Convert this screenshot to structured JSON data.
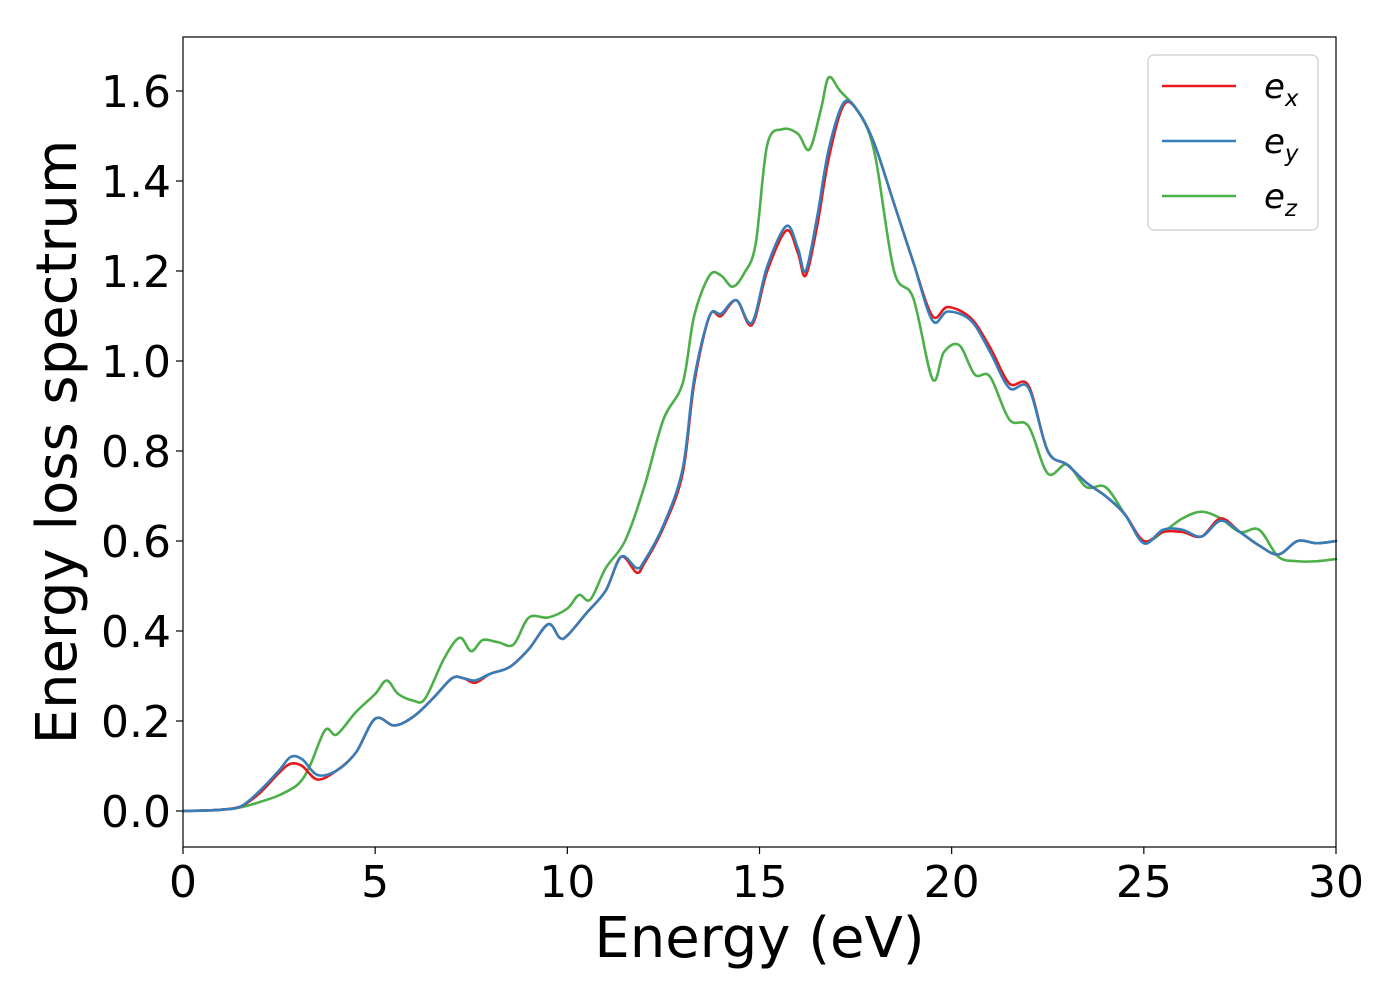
{
  "chart_data": {
    "type": "line",
    "title": "",
    "xlabel": "Energy (eV)",
    "ylabel": "Energy loss spectrum",
    "xlim": [
      0,
      30
    ],
    "ylim": [
      -0.08,
      1.72
    ],
    "xticks": [
      0,
      5,
      10,
      15,
      20,
      25,
      30
    ],
    "yticks": [
      0.0,
      0.2,
      0.4,
      0.6,
      0.8,
      1.0,
      1.2,
      1.4,
      1.6
    ],
    "grid": false,
    "legend_position": "top-right",
    "series": [
      {
        "name": "e",
        "subscript": "x",
        "color": "#e41a1c",
        "points": [
          [
            0,
            0
          ],
          [
            0.5,
            0.001
          ],
          [
            1,
            0.003
          ],
          [
            1.5,
            0.01
          ],
          [
            2,
            0.04
          ],
          [
            2.5,
            0.085
          ],
          [
            2.8,
            0.105
          ],
          [
            3.1,
            0.1
          ],
          [
            3.5,
            0.07
          ],
          [
            4,
            0.09
          ],
          [
            4.5,
            0.13
          ],
          [
            5,
            0.205
          ],
          [
            5.5,
            0.19
          ],
          [
            6,
            0.21
          ],
          [
            6.5,
            0.25
          ],
          [
            7,
            0.295
          ],
          [
            7.3,
            0.295
          ],
          [
            7.6,
            0.285
          ],
          [
            8,
            0.305
          ],
          [
            8.5,
            0.32
          ],
          [
            9,
            0.36
          ],
          [
            9.5,
            0.415
          ],
          [
            9.8,
            0.385
          ],
          [
            10,
            0.39
          ],
          [
            10.5,
            0.44
          ],
          [
            11,
            0.49
          ],
          [
            11.4,
            0.565
          ],
          [
            11.8,
            0.53
          ],
          [
            12,
            0.55
          ],
          [
            12.5,
            0.63
          ],
          [
            13,
            0.75
          ],
          [
            13.3,
            0.95
          ],
          [
            13.7,
            1.1
          ],
          [
            14,
            1.1
          ],
          [
            14.4,
            1.135
          ],
          [
            14.8,
            1.08
          ],
          [
            15.2,
            1.2
          ],
          [
            15.7,
            1.29
          ],
          [
            16,
            1.24
          ],
          [
            16.2,
            1.19
          ],
          [
            16.5,
            1.3
          ],
          [
            16.8,
            1.45
          ],
          [
            17.2,
            1.57
          ],
          [
            17.6,
            1.55
          ],
          [
            18,
            1.48
          ],
          [
            18.5,
            1.35
          ],
          [
            19,
            1.22
          ],
          [
            19.5,
            1.1
          ],
          [
            19.9,
            1.12
          ],
          [
            20.5,
            1.095
          ],
          [
            21,
            1.03
          ],
          [
            21.5,
            0.95
          ],
          [
            22,
            0.945
          ],
          [
            22.5,
            0.8
          ],
          [
            23,
            0.77
          ],
          [
            23.5,
            0.73
          ],
          [
            24,
            0.7
          ],
          [
            24.5,
            0.66
          ],
          [
            25,
            0.6
          ],
          [
            25.5,
            0.62
          ],
          [
            26,
            0.62
          ],
          [
            26.5,
            0.61
          ],
          [
            27,
            0.65
          ],
          [
            27.5,
            0.62
          ],
          [
            28,
            0.59
          ],
          [
            28.5,
            0.57
          ],
          [
            29,
            0.6
          ],
          [
            29.5,
            0.595
          ],
          [
            30,
            0.6
          ]
        ]
      },
      {
        "name": "e",
        "subscript": "y",
        "color": "#377eb8",
        "points": [
          [
            0,
            0
          ],
          [
            0.5,
            0.001
          ],
          [
            1,
            0.003
          ],
          [
            1.5,
            0.01
          ],
          [
            2,
            0.045
          ],
          [
            2.5,
            0.09
          ],
          [
            2.8,
            0.12
          ],
          [
            3.1,
            0.115
          ],
          [
            3.5,
            0.08
          ],
          [
            4,
            0.09
          ],
          [
            4.5,
            0.13
          ],
          [
            5,
            0.205
          ],
          [
            5.5,
            0.19
          ],
          [
            6,
            0.21
          ],
          [
            6.5,
            0.25
          ],
          [
            7,
            0.295
          ],
          [
            7.3,
            0.295
          ],
          [
            7.6,
            0.29
          ],
          [
            8,
            0.305
          ],
          [
            8.5,
            0.32
          ],
          [
            9,
            0.36
          ],
          [
            9.5,
            0.415
          ],
          [
            9.8,
            0.385
          ],
          [
            10,
            0.39
          ],
          [
            10.5,
            0.44
          ],
          [
            11,
            0.49
          ],
          [
            11.4,
            0.565
          ],
          [
            11.8,
            0.54
          ],
          [
            12,
            0.555
          ],
          [
            12.5,
            0.635
          ],
          [
            13,
            0.76
          ],
          [
            13.3,
            0.96
          ],
          [
            13.7,
            1.1
          ],
          [
            14,
            1.105
          ],
          [
            14.4,
            1.135
          ],
          [
            14.8,
            1.085
          ],
          [
            15.2,
            1.21
          ],
          [
            15.7,
            1.3
          ],
          [
            16,
            1.25
          ],
          [
            16.2,
            1.2
          ],
          [
            16.5,
            1.32
          ],
          [
            16.8,
            1.47
          ],
          [
            17.2,
            1.575
          ],
          [
            17.6,
            1.55
          ],
          [
            18,
            1.48
          ],
          [
            18.5,
            1.35
          ],
          [
            19,
            1.22
          ],
          [
            19.5,
            1.09
          ],
          [
            19.9,
            1.11
          ],
          [
            20.5,
            1.09
          ],
          [
            21,
            1.02
          ],
          [
            21.5,
            0.94
          ],
          [
            22,
            0.94
          ],
          [
            22.5,
            0.8
          ],
          [
            23,
            0.77
          ],
          [
            23.5,
            0.73
          ],
          [
            24,
            0.7
          ],
          [
            24.5,
            0.66
          ],
          [
            25,
            0.595
          ],
          [
            25.5,
            0.625
          ],
          [
            26,
            0.625
          ],
          [
            26.5,
            0.61
          ],
          [
            27,
            0.645
          ],
          [
            27.5,
            0.62
          ],
          [
            28,
            0.59
          ],
          [
            28.5,
            0.57
          ],
          [
            29,
            0.6
          ],
          [
            29.5,
            0.595
          ],
          [
            30,
            0.6
          ]
        ]
      },
      {
        "name": "e",
        "subscript": "z",
        "color": "#4daf4a",
        "points": [
          [
            0,
            0
          ],
          [
            0.5,
            0.001
          ],
          [
            1,
            0.003
          ],
          [
            1.5,
            0.008
          ],
          [
            2,
            0.02
          ],
          [
            2.5,
            0.035
          ],
          [
            3,
            0.06
          ],
          [
            3.3,
            0.1
          ],
          [
            3.7,
            0.18
          ],
          [
            4,
            0.17
          ],
          [
            4.5,
            0.22
          ],
          [
            5,
            0.26
          ],
          [
            5.3,
            0.29
          ],
          [
            5.6,
            0.26
          ],
          [
            6,
            0.245
          ],
          [
            6.3,
            0.25
          ],
          [
            6.8,
            0.34
          ],
          [
            7.2,
            0.385
          ],
          [
            7.5,
            0.355
          ],
          [
            7.8,
            0.38
          ],
          [
            8.2,
            0.375
          ],
          [
            8.6,
            0.37
          ],
          [
            9,
            0.43
          ],
          [
            9.5,
            0.43
          ],
          [
            10,
            0.45
          ],
          [
            10.3,
            0.48
          ],
          [
            10.6,
            0.47
          ],
          [
            11,
            0.54
          ],
          [
            11.5,
            0.6
          ],
          [
            12,
            0.72
          ],
          [
            12.5,
            0.87
          ],
          [
            13,
            0.95
          ],
          [
            13.3,
            1.1
          ],
          [
            13.7,
            1.19
          ],
          [
            14,
            1.19
          ],
          [
            14.3,
            1.165
          ],
          [
            14.6,
            1.195
          ],
          [
            14.9,
            1.26
          ],
          [
            15.2,
            1.48
          ],
          [
            15.6,
            1.515
          ],
          [
            16,
            1.505
          ],
          [
            16.3,
            1.47
          ],
          [
            16.6,
            1.56
          ],
          [
            16.8,
            1.63
          ],
          [
            17.1,
            1.6
          ],
          [
            17.6,
            1.55
          ],
          [
            18,
            1.46
          ],
          [
            18.5,
            1.2
          ],
          [
            19,
            1.14
          ],
          [
            19.5,
            0.96
          ],
          [
            19.8,
            1.02
          ],
          [
            20.2,
            1.035
          ],
          [
            20.6,
            0.97
          ],
          [
            21,
            0.965
          ],
          [
            21.5,
            0.87
          ],
          [
            22,
            0.855
          ],
          [
            22.5,
            0.75
          ],
          [
            23,
            0.77
          ],
          [
            23.5,
            0.72
          ],
          [
            24,
            0.72
          ],
          [
            24.5,
            0.66
          ],
          [
            25,
            0.6
          ],
          [
            25.5,
            0.62
          ],
          [
            26,
            0.65
          ],
          [
            26.5,
            0.665
          ],
          [
            27,
            0.65
          ],
          [
            27.5,
            0.62
          ],
          [
            28,
            0.625
          ],
          [
            28.5,
            0.565
          ],
          [
            29,
            0.555
          ],
          [
            29.5,
            0.555
          ],
          [
            30,
            0.56
          ]
        ]
      }
    ]
  }
}
